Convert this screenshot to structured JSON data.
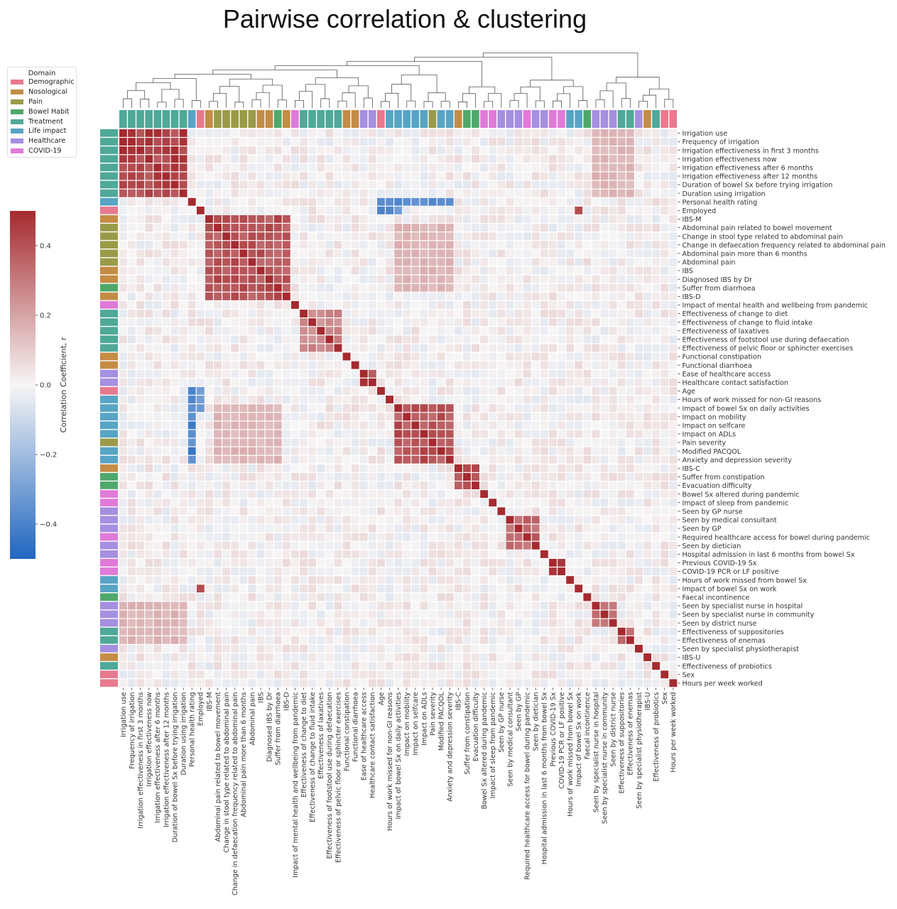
{
  "chart_data": {
    "type": "heatmap",
    "title": "Pairwise correlation & clustering",
    "colorbar": {
      "label": "Correlation Coefficient, r",
      "range": [
        -0.5,
        0.5
      ],
      "ticks": [
        0.4,
        0.2,
        0.0,
        -0.2,
        -0.4
      ],
      "tick_labels": [
        "0.4",
        "0.2",
        "0.0",
        "−0.2",
        "−0.4"
      ],
      "colors": {
        "low": "#2166c0",
        "mid": "#f7f5f5",
        "high": "#a52a2f"
      }
    },
    "legend": {
      "title": "Domain",
      "placement": "top-left",
      "entries": [
        {
          "name": "Demographic",
          "color": "#e8798e"
        },
        {
          "name": "Nosological",
          "color": "#c48c45"
        },
        {
          "name": "Pain",
          "color": "#9a9a48"
        },
        {
          "name": "Bowel Habit",
          "color": "#4fa86a"
        },
        {
          "name": "Treatment",
          "color": "#4fa898"
        },
        {
          "name": "Life impact",
          "color": "#58a4c4"
        },
        {
          "name": "Healthcare",
          "color": "#a58fe0"
        },
        {
          "name": "COVID-19",
          "color": "#e07ad8"
        }
      ]
    },
    "variables": [
      {
        "name": "Irrigation use",
        "domain": "Treatment"
      },
      {
        "name": "Frequency of irrigation",
        "domain": "Treatment"
      },
      {
        "name": "Irrigation effectiveness in first 3 months",
        "domain": "Treatment"
      },
      {
        "name": "Irrigation effectiveness now",
        "domain": "Treatment"
      },
      {
        "name": "Irrigation effectiveness after 6 months",
        "domain": "Treatment"
      },
      {
        "name": "Irrigation effectiveness after 12 months",
        "domain": "Treatment"
      },
      {
        "name": "Duration of bowel Sx before trying irrigation",
        "domain": "Treatment"
      },
      {
        "name": "Duration using irrigation",
        "domain": "Treatment"
      },
      {
        "name": "Personal health rating",
        "domain": "Life impact"
      },
      {
        "name": "Employed",
        "domain": "Demographic"
      },
      {
        "name": "IBS-M",
        "domain": "Nosological"
      },
      {
        "name": "Abdominal pain related to bowel movement",
        "domain": "Pain"
      },
      {
        "name": "Change in stool type related to abdominal pain",
        "domain": "Pain"
      },
      {
        "name": "Change in defaecation frequency related to abdominal pain",
        "domain": "Pain"
      },
      {
        "name": "Abdominal pain more than 6 months",
        "domain": "Pain"
      },
      {
        "name": "Abdominal pain",
        "domain": "Pain"
      },
      {
        "name": "IBS",
        "domain": "Nosological"
      },
      {
        "name": "Diagnosed IBS by Dr",
        "domain": "Nosological"
      },
      {
        "name": "Suffer from diarrhoea",
        "domain": "Bowel Habit"
      },
      {
        "name": "IBS-D",
        "domain": "Nosological"
      },
      {
        "name": "Impact of mental health and wellbeing from pandemic",
        "domain": "COVID-19"
      },
      {
        "name": "Effectiveness of change to diet",
        "domain": "Treatment"
      },
      {
        "name": "Effectiveness of change to fluid intake",
        "domain": "Treatment"
      },
      {
        "name": "Effectiveness of laxatives",
        "domain": "Treatment"
      },
      {
        "name": "Effectiveness of footstool use during defaecation",
        "domain": "Treatment"
      },
      {
        "name": "Effectiveness of pelvic floor or sphincter exercises",
        "domain": "Treatment"
      },
      {
        "name": "Functional constipation",
        "domain": "Nosological"
      },
      {
        "name": "Functional diarrhoea",
        "domain": "Nosological"
      },
      {
        "name": "Ease of healthcare access",
        "domain": "Healthcare"
      },
      {
        "name": "Healthcare contact satisfaction",
        "domain": "Healthcare"
      },
      {
        "name": "Age",
        "domain": "Demographic"
      },
      {
        "name": "Hours of work missed for non-GI reasons",
        "domain": "Life impact"
      },
      {
        "name": "Impact of bowel Sx on daily activities",
        "domain": "Life impact"
      },
      {
        "name": "Impact on mobility",
        "domain": "Life impact"
      },
      {
        "name": "Impact on selfcare",
        "domain": "Life impact"
      },
      {
        "name": "Impact on ADLs",
        "domain": "Life impact"
      },
      {
        "name": "Pain severity",
        "domain": "Pain"
      },
      {
        "name": "Modified PACQOL",
        "domain": "Life impact"
      },
      {
        "name": "Anxiety and depression severity",
        "domain": "Life impact"
      },
      {
        "name": "IBS-C",
        "domain": "Nosological"
      },
      {
        "name": "Suffer from constipation",
        "domain": "Bowel Habit"
      },
      {
        "name": "Evacuation difficulty",
        "domain": "Bowel Habit"
      },
      {
        "name": "Bowel Sx altered during pandemic",
        "domain": "COVID-19"
      },
      {
        "name": "Impact of sleep from pandemic",
        "domain": "COVID-19"
      },
      {
        "name": "Seen by GP nurse",
        "domain": "Healthcare"
      },
      {
        "name": "Seen by medical consultant",
        "domain": "Healthcare"
      },
      {
        "name": "Seen by GP",
        "domain": "Healthcare"
      },
      {
        "name": "Required healthcare access for bowel during pandemic",
        "domain": "COVID-19"
      },
      {
        "name": "Seen by dietician",
        "domain": "Healthcare"
      },
      {
        "name": "Hospital admission in last 6 months from bowel Sx",
        "domain": "Healthcare"
      },
      {
        "name": "Previous COVID-19 Sx",
        "domain": "COVID-19"
      },
      {
        "name": "COVID-19 PCR or LF positive",
        "domain": "COVID-19"
      },
      {
        "name": "Hours of work missed from bowel Sx",
        "domain": "Life impact"
      },
      {
        "name": "Impact of bowel Sx on work",
        "domain": "Life impact"
      },
      {
        "name": "Faecal incontinence",
        "domain": "Bowel Habit"
      },
      {
        "name": "Seen by specialist nurse in hospital",
        "domain": "Healthcare"
      },
      {
        "name": "Seen by specialist nurse in community",
        "domain": "Healthcare"
      },
      {
        "name": "Seen by district nurse",
        "domain": "Healthcare"
      },
      {
        "name": "Effectiveness of suppositories",
        "domain": "Treatment"
      },
      {
        "name": "Effectiveness of enemas",
        "domain": "Treatment"
      },
      {
        "name": "Seen by specialist physiotherapist",
        "domain": "Healthcare"
      },
      {
        "name": "IBS-U",
        "domain": "Nosological"
      },
      {
        "name": "Effectiveness of probiotics",
        "domain": "Treatment"
      },
      {
        "name": "Sex",
        "domain": "Demographic"
      },
      {
        "name": "Hours per week worked",
        "domain": "Demographic"
      }
    ],
    "clusters": [
      {
        "rows": [
          0,
          7
        ],
        "cols": [
          0,
          7
        ],
        "r": 0.5
      },
      {
        "rows": [
          10,
          19
        ],
        "cols": [
          10,
          19
        ],
        "r": 0.45
      },
      {
        "rows": [
          21,
          25
        ],
        "cols": [
          21,
          25
        ],
        "r": 0.3
      },
      {
        "rows": [
          28,
          29
        ],
        "cols": [
          28,
          29
        ],
        "r": 0.5
      },
      {
        "rows": [
          32,
          38
        ],
        "cols": [
          32,
          38
        ],
        "r": 0.45
      },
      {
        "rows": [
          39,
          41
        ],
        "cols": [
          39,
          41
        ],
        "r": 0.45
      },
      {
        "rows": [
          45,
          48
        ],
        "cols": [
          45,
          48
        ],
        "r": 0.4
      },
      {
        "rows": [
          50,
          51
        ],
        "cols": [
          50,
          51
        ],
        "r": 0.5
      },
      {
        "rows": [
          55,
          57
        ],
        "cols": [
          55,
          57
        ],
        "r": 0.4
      },
      {
        "rows": [
          58,
          59
        ],
        "cols": [
          58,
          59
        ],
        "r": 0.4
      },
      {
        "rows": [
          8,
          8
        ],
        "cols": [
          30,
          38
        ],
        "r": -0.45
      },
      {
        "rows": [
          30,
          38
        ],
        "cols": [
          8,
          8
        ],
        "r": -0.45
      },
      {
        "rows": [
          9,
          9
        ],
        "cols": [
          30,
          32
        ],
        "r": -0.4
      },
      {
        "rows": [
          30,
          32
        ],
        "cols": [
          9,
          9
        ],
        "r": -0.4
      },
      {
        "rows": [
          9,
          9
        ],
        "cols": [
          53,
          53
        ],
        "r": 0.45
      },
      {
        "rows": [
          53,
          53
        ],
        "cols": [
          9,
          9
        ],
        "r": 0.45
      },
      {
        "rows": [
          0,
          7
        ],
        "cols": [
          55,
          59
        ],
        "r": 0.18
      },
      {
        "rows": [
          55,
          59
        ],
        "cols": [
          0,
          7
        ],
        "r": 0.18
      },
      {
        "rows": [
          11,
          18
        ],
        "cols": [
          32,
          38
        ],
        "r": 0.18
      },
      {
        "rows": [
          32,
          38
        ],
        "cols": [
          11,
          18
        ],
        "r": 0.18
      }
    ]
  }
}
